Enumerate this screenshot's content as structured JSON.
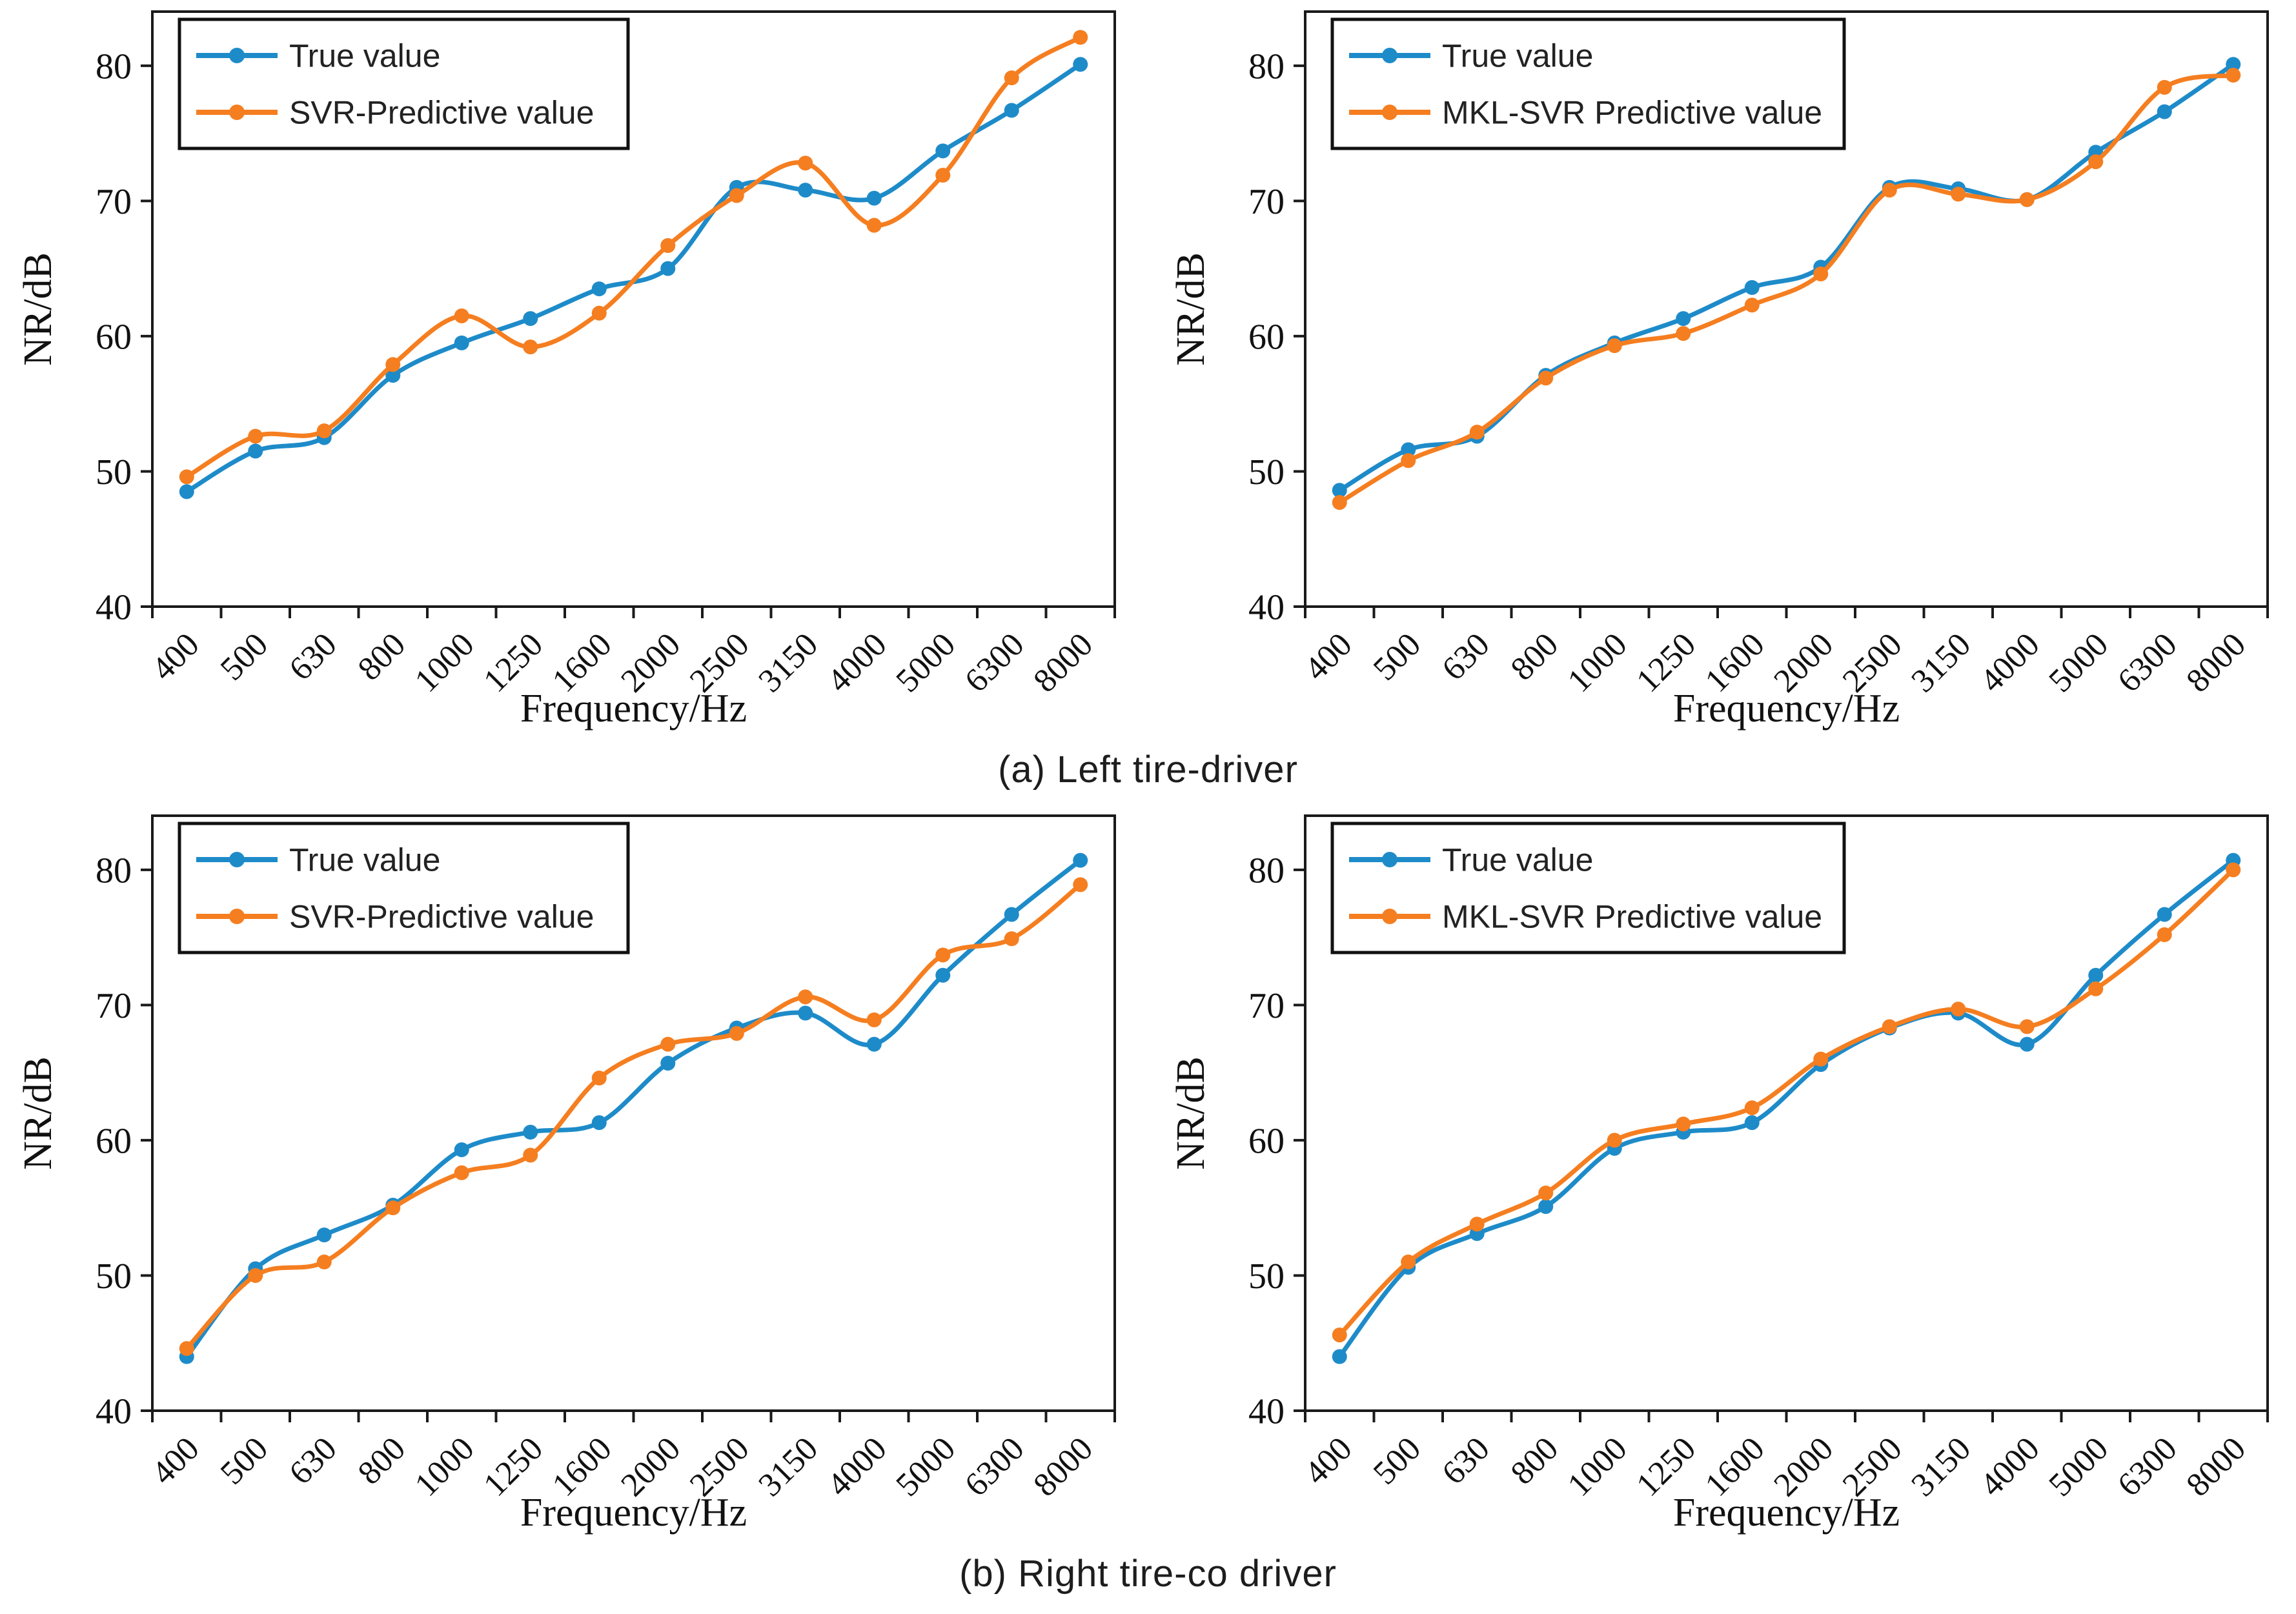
{
  "captions": {
    "a": "(a)  Left tire-driver",
    "b": "(b)  Right tire-co driver"
  },
  "colors": {
    "true_series": "#1E8BC9",
    "predictive_series": "#F57E20",
    "axis": "#1a1a1a",
    "legend_border": "#111111"
  },
  "chart_data": [
    {
      "id": "left-tire-driver-svr",
      "type": "line",
      "xlabel": "Frequency/Hz",
      "ylabel": "NR/dB",
      "ylim": [
        40,
        84
      ],
      "yticks": [
        40,
        50,
        60,
        70,
        80
      ],
      "grid": false,
      "legend_position": "top-left",
      "categories": [
        "400",
        "500",
        "630",
        "800",
        "1000",
        "1250",
        "1600",
        "2000",
        "2500",
        "3150",
        "4000",
        "5000",
        "6300",
        "8000"
      ],
      "series": [
        {
          "name": "True value",
          "color": "#1E8BC9",
          "values": [
            48.5,
            51.5,
            52.5,
            57.1,
            59.5,
            61.3,
            63.5,
            65.0,
            71.0,
            70.8,
            70.2,
            73.7,
            76.7,
            80.1
          ]
        },
        {
          "name": "SVR-Predictive value",
          "color": "#F57E20",
          "values": [
            49.6,
            52.6,
            53.0,
            57.9,
            61.5,
            59.2,
            61.7,
            66.7,
            70.4,
            72.8,
            68.2,
            71.9,
            79.1,
            82.1
          ]
        }
      ]
    },
    {
      "id": "left-tire-driver-mklsvr",
      "type": "line",
      "xlabel": "Frequency/Hz",
      "ylabel": "NR/dB",
      "ylim": [
        40,
        84
      ],
      "yticks": [
        40,
        50,
        60,
        70,
        80
      ],
      "grid": false,
      "legend_position": "top-left",
      "categories": [
        "400",
        "500",
        "630",
        "800",
        "1000",
        "1250",
        "1600",
        "2000",
        "2500",
        "3150",
        "4000",
        "5000",
        "6300",
        "8000"
      ],
      "series": [
        {
          "name": "True value",
          "color": "#1E8BC9",
          "values": [
            48.6,
            51.6,
            52.6,
            57.1,
            59.5,
            61.3,
            63.6,
            65.1,
            71.0,
            70.9,
            70.1,
            73.6,
            76.6,
            80.1
          ]
        },
        {
          "name": "MKL-SVR Predictive value",
          "color": "#F57E20",
          "values": [
            47.7,
            50.8,
            52.9,
            56.9,
            59.3,
            60.2,
            62.3,
            64.6,
            70.8,
            70.5,
            70.1,
            72.9,
            78.4,
            79.3
          ]
        }
      ]
    },
    {
      "id": "right-tire-codriver-svr",
      "type": "line",
      "xlabel": "Frequency/Hz",
      "ylabel": "NR/dB",
      "ylim": [
        40,
        84
      ],
      "yticks": [
        40,
        50,
        60,
        70,
        80
      ],
      "grid": false,
      "legend_position": "top-left",
      "categories": [
        "400",
        "500",
        "630",
        "800",
        "1000",
        "1250",
        "1600",
        "2000",
        "2500",
        "3150",
        "4000",
        "5000",
        "6300",
        "8000"
      ],
      "series": [
        {
          "name": "True value",
          "color": "#1E8BC9",
          "values": [
            44.0,
            50.5,
            53.0,
            55.2,
            59.3,
            60.6,
            61.3,
            65.7,
            68.3,
            69.4,
            67.1,
            72.2,
            76.7,
            80.7
          ]
        },
        {
          "name": "SVR-Predictive value",
          "color": "#F57E20",
          "values": [
            44.6,
            50.0,
            51.0,
            55.0,
            57.6,
            58.9,
            64.6,
            67.1,
            67.9,
            70.6,
            68.9,
            73.7,
            74.9,
            78.9
          ]
        }
      ]
    },
    {
      "id": "right-tire-codriver-mklsvr",
      "type": "line",
      "xlabel": "Frequency/Hz",
      "ylabel": "NR/dB",
      "ylim": [
        40,
        84
      ],
      "yticks": [
        40,
        50,
        60,
        70,
        80
      ],
      "grid": false,
      "legend_position": "top-left",
      "categories": [
        "400",
        "500",
        "630",
        "800",
        "1000",
        "1250",
        "1600",
        "2000",
        "2500",
        "3150",
        "4000",
        "5000",
        "6300",
        "8000"
      ],
      "series": [
        {
          "name": "True value",
          "color": "#1E8BC9",
          "values": [
            44.0,
            50.6,
            53.1,
            55.1,
            59.4,
            60.6,
            61.3,
            65.6,
            68.3,
            69.4,
            67.1,
            72.2,
            76.7,
            80.7
          ]
        },
        {
          "name": "MKL-SVR Predictive value",
          "color": "#F57E20",
          "values": [
            45.6,
            51.0,
            53.8,
            56.1,
            60.0,
            61.2,
            62.4,
            66.0,
            68.4,
            69.7,
            68.4,
            71.2,
            75.2,
            80.0
          ]
        }
      ]
    }
  ]
}
